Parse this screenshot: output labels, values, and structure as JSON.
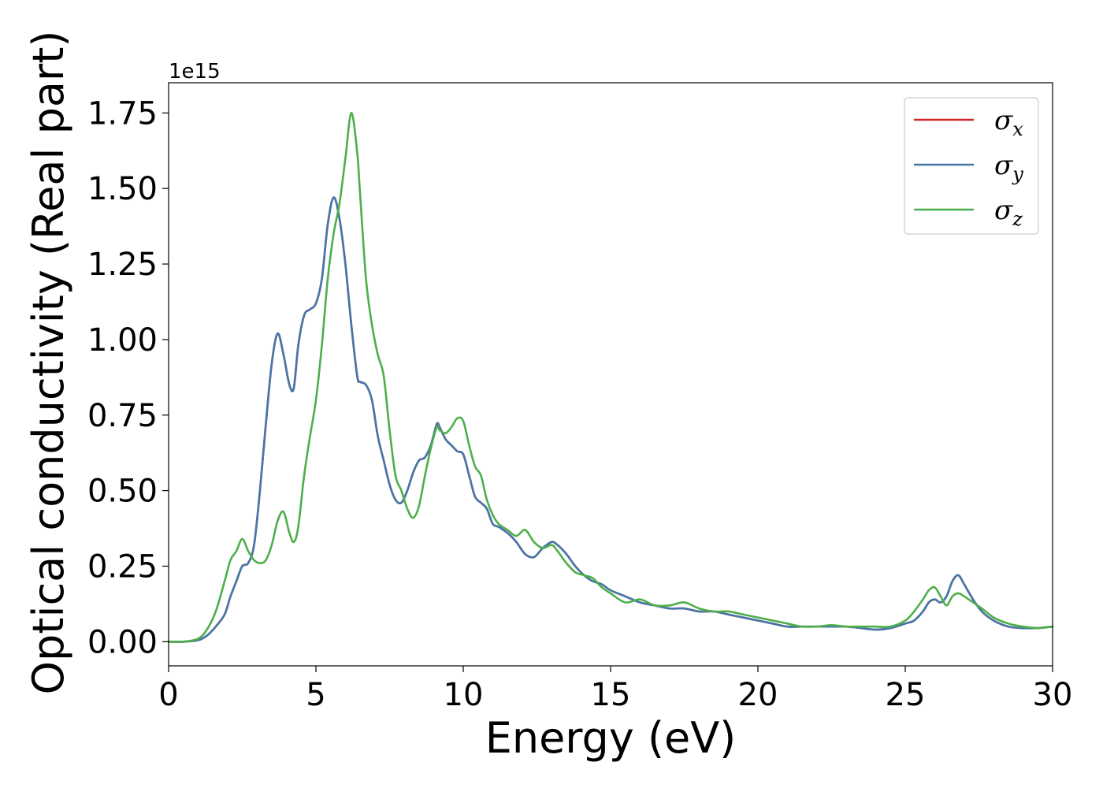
{
  "chart_data": {
    "type": "line",
    "title": "",
    "xlabel": "Energy (eV)",
    "ylabel": "Optical conductivity (Real part)",
    "y_offset_text": "1e15",
    "y_scale": 1000000000000000.0,
    "xlim": [
      0,
      30
    ],
    "ylim": [
      -0.08,
      1.85
    ],
    "xticks": [
      0,
      5,
      10,
      15,
      20,
      25,
      30
    ],
    "xtick_labels": [
      "0",
      "5",
      "10",
      "15",
      "20",
      "25",
      "30"
    ],
    "yticks": [
      0.0,
      0.25,
      0.5,
      0.75,
      1.0,
      1.25,
      1.5,
      1.75
    ],
    "ytick_labels": [
      "0.00",
      "0.25",
      "0.50",
      "0.75",
      "1.00",
      "1.25",
      "1.50",
      "1.75"
    ],
    "grid": false,
    "legend_position": "top-right",
    "x": [
      0,
      0.5,
      1.0,
      1.3,
      1.6,
      1.9,
      2.1,
      2.3,
      2.5,
      2.7,
      2.9,
      3.1,
      3.3,
      3.5,
      3.7,
      3.9,
      4.1,
      4.25,
      4.4,
      4.6,
      4.8,
      5.0,
      5.2,
      5.4,
      5.6,
      5.8,
      6.0,
      6.2,
      6.4,
      6.5,
      6.7,
      6.9,
      7.1,
      7.3,
      7.5,
      7.7,
      7.9,
      8.1,
      8.3,
      8.5,
      8.7,
      8.9,
      9.1,
      9.2,
      9.4,
      9.6,
      9.8,
      10.0,
      10.2,
      10.4,
      10.6,
      10.8,
      11.0,
      11.2,
      11.5,
      11.8,
      12.1,
      12.4,
      12.7,
      13.0,
      13.2,
      13.5,
      13.8,
      14.1,
      14.4,
      14.7,
      15.0,
      15.5,
      16.0,
      16.5,
      17.0,
      17.5,
      18.0,
      18.5,
      19.0,
      19.5,
      20.0,
      20.5,
      21.0,
      21.5,
      22.0,
      22.5,
      23.0,
      23.5,
      24.0,
      24.5,
      25.0,
      25.3,
      25.6,
      25.8,
      26.0,
      26.2,
      26.4,
      26.6,
      26.8,
      27.0,
      27.3,
      27.6,
      28.0,
      28.5,
      29.0,
      29.5,
      30.0
    ],
    "series": [
      {
        "name": "σx",
        "color": "#d62728",
        "values": [
          0.0,
          0.0,
          0.005,
          0.02,
          0.05,
          0.09,
          0.15,
          0.2,
          0.25,
          0.26,
          0.32,
          0.5,
          0.72,
          0.92,
          1.02,
          0.95,
          0.85,
          0.84,
          0.98,
          1.08,
          1.1,
          1.12,
          1.2,
          1.38,
          1.47,
          1.4,
          1.25,
          1.05,
          0.88,
          0.86,
          0.85,
          0.8,
          0.68,
          0.6,
          0.52,
          0.47,
          0.46,
          0.5,
          0.56,
          0.6,
          0.61,
          0.65,
          0.72,
          0.71,
          0.67,
          0.65,
          0.63,
          0.62,
          0.55,
          0.48,
          0.46,
          0.44,
          0.39,
          0.38,
          0.36,
          0.33,
          0.29,
          0.28,
          0.31,
          0.33,
          0.32,
          0.29,
          0.25,
          0.22,
          0.2,
          0.19,
          0.17,
          0.15,
          0.13,
          0.12,
          0.11,
          0.11,
          0.1,
          0.1,
          0.09,
          0.08,
          0.07,
          0.06,
          0.05,
          0.05,
          0.05,
          0.05,
          0.05,
          0.045,
          0.04,
          0.045,
          0.06,
          0.07,
          0.1,
          0.13,
          0.14,
          0.13,
          0.15,
          0.2,
          0.22,
          0.19,
          0.14,
          0.1,
          0.07,
          0.05,
          0.045,
          0.045,
          0.05
        ]
      },
      {
        "name": "σy",
        "color": "#4477aa",
        "values": [
          0.0,
          0.0,
          0.005,
          0.02,
          0.05,
          0.09,
          0.15,
          0.2,
          0.25,
          0.26,
          0.32,
          0.5,
          0.72,
          0.92,
          1.02,
          0.95,
          0.85,
          0.84,
          0.98,
          1.08,
          1.1,
          1.12,
          1.2,
          1.38,
          1.47,
          1.4,
          1.25,
          1.05,
          0.88,
          0.86,
          0.85,
          0.8,
          0.68,
          0.6,
          0.52,
          0.47,
          0.46,
          0.5,
          0.56,
          0.6,
          0.61,
          0.65,
          0.72,
          0.71,
          0.67,
          0.65,
          0.63,
          0.62,
          0.55,
          0.48,
          0.46,
          0.44,
          0.39,
          0.38,
          0.36,
          0.33,
          0.29,
          0.28,
          0.31,
          0.33,
          0.32,
          0.29,
          0.25,
          0.22,
          0.2,
          0.19,
          0.17,
          0.15,
          0.13,
          0.12,
          0.11,
          0.11,
          0.1,
          0.1,
          0.09,
          0.08,
          0.07,
          0.06,
          0.05,
          0.05,
          0.05,
          0.05,
          0.05,
          0.045,
          0.04,
          0.045,
          0.06,
          0.07,
          0.1,
          0.13,
          0.14,
          0.13,
          0.15,
          0.2,
          0.22,
          0.19,
          0.14,
          0.1,
          0.07,
          0.05,
          0.045,
          0.045,
          0.05
        ]
      },
      {
        "name": "σz",
        "color": "#4daf4a",
        "values": [
          0.0,
          0.0,
          0.01,
          0.04,
          0.1,
          0.2,
          0.27,
          0.3,
          0.34,
          0.3,
          0.27,
          0.26,
          0.27,
          0.32,
          0.4,
          0.43,
          0.36,
          0.33,
          0.38,
          0.55,
          0.68,
          0.8,
          0.98,
          1.2,
          1.35,
          1.45,
          1.6,
          1.75,
          1.62,
          1.48,
          1.2,
          1.05,
          0.95,
          0.88,
          0.7,
          0.55,
          0.5,
          0.44,
          0.41,
          0.45,
          0.55,
          0.64,
          0.71,
          0.7,
          0.69,
          0.71,
          0.74,
          0.73,
          0.65,
          0.58,
          0.55,
          0.47,
          0.42,
          0.39,
          0.37,
          0.35,
          0.37,
          0.33,
          0.31,
          0.32,
          0.3,
          0.26,
          0.23,
          0.22,
          0.21,
          0.18,
          0.16,
          0.13,
          0.14,
          0.12,
          0.12,
          0.13,
          0.11,
          0.1,
          0.1,
          0.09,
          0.08,
          0.07,
          0.06,
          0.05,
          0.05,
          0.055,
          0.05,
          0.05,
          0.05,
          0.05,
          0.07,
          0.1,
          0.14,
          0.17,
          0.18,
          0.15,
          0.12,
          0.15,
          0.16,
          0.15,
          0.13,
          0.11,
          0.08,
          0.06,
          0.05,
          0.045,
          0.05
        ]
      }
    ]
  }
}
